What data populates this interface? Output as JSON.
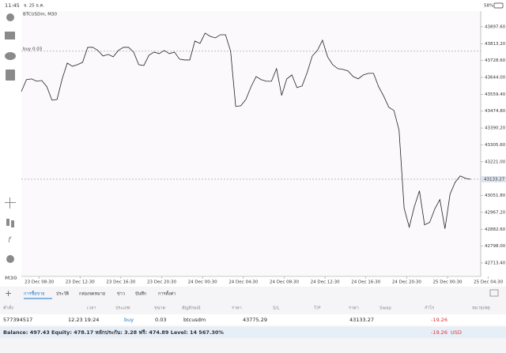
{
  "status_bar": {
    "time": "11:45",
    "date": "จ. 25 ธ.ค.",
    "battery": "58%"
  },
  "toolbar": {
    "timeframe": "M30"
  },
  "chart_data": {
    "type": "line",
    "title": "BTCUSDm, M30",
    "color": "#222222",
    "values": [
      43573.3,
      43632.6,
      43636.6,
      43624.7,
      43628.7,
      43597.0,
      43529.8,
      43533.7,
      43636.6,
      43715.7,
      43699.8,
      43707.8,
      43719.6,
      43794.8,
      43794.8,
      43778.9,
      43751.3,
      43759.2,
      43747.3,
      43778.9,
      43794.8,
      43794.8,
      43771.0,
      43707.8,
      43703.8,
      43755.2,
      43771.0,
      43763.1,
      43778.9,
      43763.1,
      43771.0,
      43735.4,
      43731.5,
      43731.5,
      43826.4,
      43814.5,
      43866.0,
      43850.1,
      43842.2,
      43858.0,
      43858.0,
      43775.0,
      43498.1,
      43502.1,
      43533.7,
      43597.0,
      43648.4,
      43632.6,
      43624.7,
      43624.7,
      43688.0,
      43553.5,
      43636.6,
      43656.3,
      43593.1,
      43601.0,
      43668.2,
      43751.3,
      43778.9,
      43830.4,
      43747.3,
      43707.8,
      43688.0,
      43684.0,
      43676.1,
      43648.4,
      43636.6,
      43656.3,
      43664.3,
      43664.3,
      43597.0,
      43549.6,
      43494.2,
      43478.4,
      43379.5,
      42987.9,
      42893.0,
      42995.9,
      43075.0,
      42904.9,
      42916.8,
      42984.0,
      43031.5,
      42885.1,
      43059.1,
      43118.5,
      43150.1,
      43138.2,
      43133.27
    ],
    "xlim": [
      0,
      90
    ],
    "ylim": [
      42646,
      43976.7
    ],
    "xticks": [
      {
        "value": 3.5,
        "label": "23 Dec 08:30"
      },
      {
        "value": 11.5,
        "label": "23 Dec 12:30"
      },
      {
        "value": 19.5,
        "label": "23 Dec 16:30"
      },
      {
        "value": 27.5,
        "label": "23 Dec 20:30"
      },
      {
        "value": 35.5,
        "label": "24 Dec 00:30"
      },
      {
        "value": 43.5,
        "label": "24 Dec 04:30"
      },
      {
        "value": 51.5,
        "label": "24 Dec 08:30"
      },
      {
        "value": 59.5,
        "label": "24 Dec 12:30"
      },
      {
        "value": 67.5,
        "label": "24 Dec 16:30"
      },
      {
        "value": 75.5,
        "label": "24 Dec 20:30"
      },
      {
        "value": 83.5,
        "label": "25 Dec 00:30"
      },
      {
        "value": 91.5,
        "label": "25 Dec 04:30"
      }
    ],
    "yticks": [
      {
        "value": 43897.6,
        "label": "43897.60"
      },
      {
        "value": 43813.2,
        "label": "43813.20"
      },
      {
        "value": 43728.6,
        "label": "43728.60"
      },
      {
        "value": 43644.0,
        "label": "43644.00"
      },
      {
        "value": 43559.4,
        "label": "43559.40"
      },
      {
        "value": 43474.8,
        "label": "43474.80"
      },
      {
        "value": 43390.2,
        "label": "43390.20"
      },
      {
        "value": 43305.6,
        "label": "43305.60"
      },
      {
        "value": 43221.0,
        "label": "43221.00"
      },
      {
        "value": 43051.8,
        "label": "43051.80"
      },
      {
        "value": 42967.2,
        "label": "42967.20"
      },
      {
        "value": 42882.6,
        "label": "42882.60"
      },
      {
        "value": 42798.0,
        "label": "42798.00"
      },
      {
        "value": 42713.4,
        "label": "42713.40"
      }
    ],
    "current_price": {
      "value": 43133.27,
      "label": "43133.27"
    },
    "order_line": {
      "value": 43775.29,
      "label": "buy 0.03"
    }
  },
  "trade_panel": {
    "tabs": [
      "การซื้อขาย",
      "ประวัติ",
      "กล่องจดหมาย",
      "ข่าว",
      "บันทึก",
      "การตั้งค่า"
    ],
    "columns": [
      "คำสั่ง",
      "เวลา",
      "ประเภท",
      "ขนาด",
      "สัญลักษณ์",
      "ราคา",
      "S/L",
      "T/P",
      "ราคา",
      "Swap",
      "กำไร",
      "หมายเหตุ"
    ],
    "row": {
      "order": "577394517",
      "time": "12.23 19:24",
      "type": "buy",
      "size": "0.03",
      "symbol": "btcusdm",
      "open_price": "43775.29",
      "price": "43133.27",
      "profit": "-19.26"
    },
    "summary": {
      "text": "Balance: 497.43 Equity: 478.17 หลักประกัน: 3.28 ฟรี: 474.89 Level: 14 567.30%",
      "profit": "-19.26",
      "currency": "USD"
    }
  }
}
